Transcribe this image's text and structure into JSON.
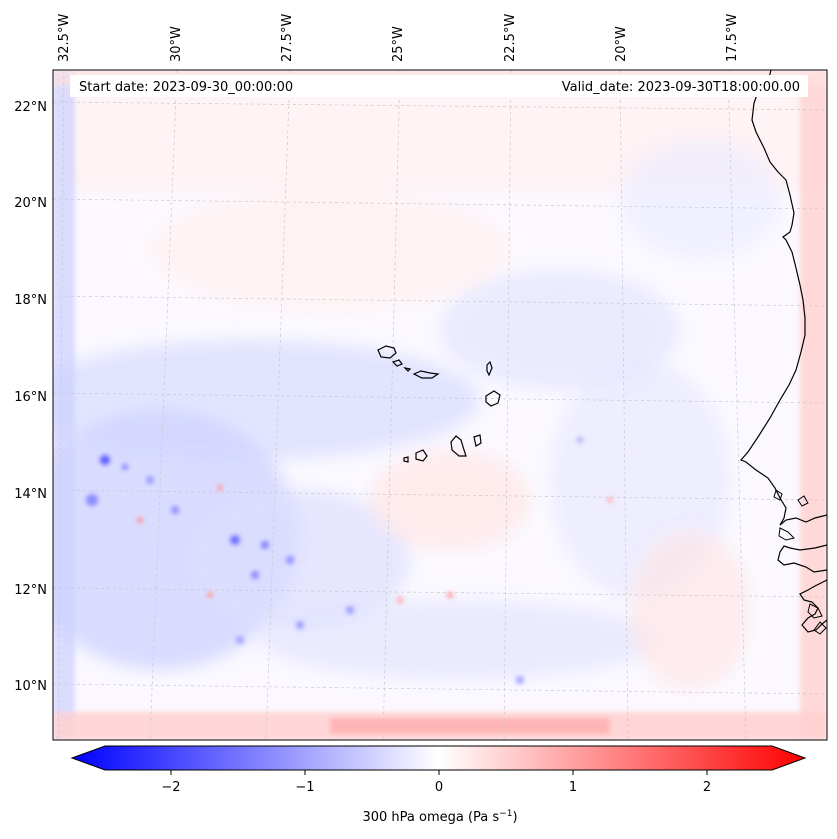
{
  "map": {
    "header": {
      "start_date": "Start date: 2023-09-30_00:00:00",
      "valid_date": "Valid_date: 2023-09-30T18:00:00.00"
    },
    "lon_ticks": [
      "32.5°W",
      "30°W",
      "27.5°W",
      "25°W",
      "22.5°W",
      "20°W",
      "17.5°W"
    ],
    "lat_ticks": [
      "22°N",
      "20°N",
      "18°N",
      "16°N",
      "14°N",
      "12°N",
      "10°N"
    ],
    "lon_values": [
      -32.5,
      -30,
      -27.5,
      -25,
      -22.5,
      -20,
      -17.5
    ],
    "lat_values": [
      22,
      20,
      18,
      16,
      14,
      12,
      10
    ],
    "extent": {
      "lon_min": -32.5,
      "lon_max": -15.3,
      "lat_min": 8.9,
      "lat_max": 22.8
    },
    "gridlines": "dashed light gray",
    "coastline_color": "#000000",
    "features": [
      "West African coastline (Mauritania, Senegal, Guinea-Bissau)",
      "Cape Verde islands"
    ]
  },
  "colorbar": {
    "label": "300 hPa omega (Pa s",
    "label_exp": "−1",
    "label_close": ")",
    "ticks": [
      "−2",
      "−1",
      "0",
      "1",
      "2"
    ],
    "tick_values": [
      -2,
      -1,
      0,
      1,
      2
    ],
    "range": [
      -2.5,
      2.5
    ],
    "extend": "both",
    "cmap": "bwr",
    "colors": {
      "min": "#0000ff",
      "mid": "#ffffff",
      "max": "#ff0000"
    }
  }
}
